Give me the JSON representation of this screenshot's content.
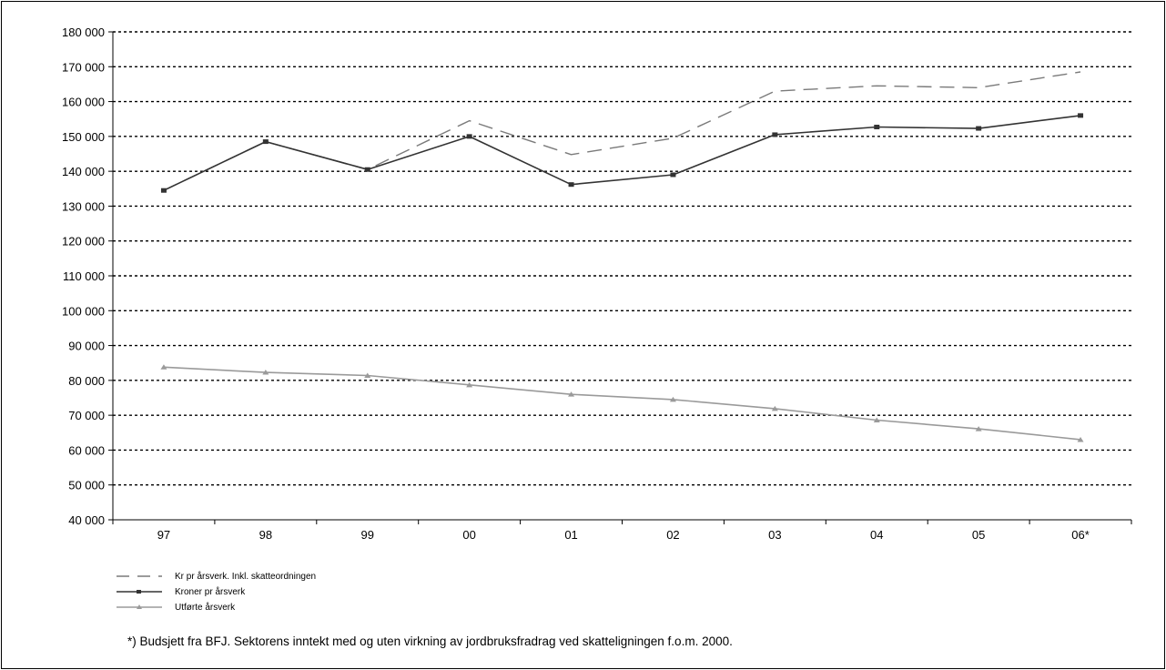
{
  "chart_data": {
    "type": "line",
    "categories": [
      "97",
      "98",
      "99",
      "00",
      "01",
      "02",
      "03",
      "04",
      "05",
      "06*"
    ],
    "ylim": [
      40000,
      180000
    ],
    "ytick_step": 10000,
    "ytick_labels": [
      "40 000",
      "50 000",
      "60 000",
      "70 000",
      "80 000",
      "90 000",
      "100 000",
      "110 000",
      "120 000",
      "130 000",
      "140 000",
      "150 000",
      "160 000",
      "170 000",
      "180 000"
    ],
    "grid": true,
    "legend_position": "bottom-left",
    "series": [
      {
        "name": "Kr pr årsverk. Inkl. skatteordningen",
        "style": "dashed",
        "color": "#7a7a7a",
        "marker": "none",
        "values": [
          134500,
          148500,
          140500,
          154500,
          144800,
          149500,
          163000,
          164500,
          164000,
          168500
        ]
      },
      {
        "name": "Kroner pr årsverk",
        "style": "solid",
        "color": "#333333",
        "marker": "square",
        "values": [
          134500,
          148500,
          140500,
          150000,
          136200,
          139000,
          150500,
          152700,
          152300,
          156000
        ]
      },
      {
        "name": "Utførte årsverk",
        "style": "solid",
        "color": "#9a9a9a",
        "marker": "triangle",
        "values": [
          83800,
          82300,
          81400,
          78700,
          76000,
          74500,
          71900,
          68600,
          66100,
          63000
        ]
      }
    ],
    "footnote": "*) Budsjett fra BFJ. Sektorens inntekt med og uten virkning av jordbruksfradrag ved skatteligningen f.o.m. 2000."
  }
}
